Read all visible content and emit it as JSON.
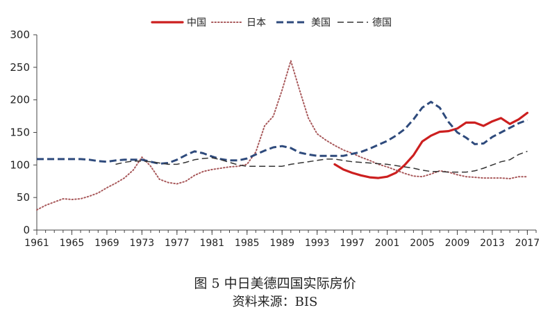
{
  "caption": {
    "title": "图 5 中日美德四国实际房价",
    "source": "资料来源：BIS"
  },
  "chart_data": {
    "type": "line",
    "xlim": [
      1961,
      2018
    ],
    "ylim": [
      0,
      300
    ],
    "y_ticks": [
      0,
      50,
      100,
      150,
      200,
      250,
      300
    ],
    "y_tick_labels": [
      "0",
      "50",
      "100",
      "150",
      "200",
      "250",
      "300"
    ],
    "x_ticks": [
      1961,
      1965,
      1969,
      1973,
      1977,
      1981,
      1985,
      1989,
      1993,
      1997,
      2001,
      2005,
      2009,
      2013,
      2017
    ],
    "x_tick_labels": [
      "1961",
      "1965",
      "1969",
      "1973",
      "1977",
      "1981",
      "1985",
      "1989",
      "1993",
      "1997",
      "2001",
      "2005",
      "2009",
      "2013",
      "2017"
    ],
    "grid": false,
    "legend_position": "top-center",
    "series": [
      {
        "name": "中国",
        "color": "#cc1f1f",
        "style": "solid",
        "x": [
          1995,
          1996,
          1997,
          1998,
          1999,
          2000,
          2001,
          2002,
          2003,
          2004,
          2005,
          2006,
          2007,
          2008,
          2009,
          2010,
          2011,
          2012,
          2013,
          2014,
          2015,
          2016,
          2017
        ],
        "y": [
          101,
          93,
          88,
          84,
          81,
          80,
          82,
          88,
          100,
          115,
          136,
          145,
          151,
          152,
          156,
          165,
          165,
          160,
          167,
          172,
          163,
          170,
          180
        ]
      },
      {
        "name": "日本",
        "color": "#a8585a",
        "style": "dotted",
        "x": [
          1961,
          1962,
          1963,
          1964,
          1965,
          1966,
          1967,
          1968,
          1969,
          1970,
          1971,
          1972,
          1973,
          1974,
          1975,
          1976,
          1977,
          1978,
          1979,
          1980,
          1981,
          1982,
          1983,
          1984,
          1985,
          1986,
          1987,
          1988,
          1989,
          1990,
          1991,
          1992,
          1993,
          1994,
          1995,
          1996,
          1997,
          1998,
          1999,
          2000,
          2001,
          2002,
          2003,
          2004,
          2005,
          2006,
          2007,
          2008,
          2009,
          2010,
          2011,
          2012,
          2013,
          2014,
          2015,
          2016,
          2017
        ],
        "y": [
          31,
          38,
          43,
          48,
          47,
          48,
          52,
          57,
          65,
          72,
          80,
          92,
          112,
          98,
          78,
          73,
          71,
          75,
          84,
          90,
          93,
          95,
          97,
          98,
          101,
          120,
          160,
          175,
          215,
          260,
          215,
          172,
          148,
          138,
          130,
          123,
          118,
          112,
          107,
          101,
          97,
          92,
          87,
          83,
          82,
          86,
          91,
          89,
          85,
          82,
          81,
          80,
          80,
          80,
          79,
          82,
          82
        ]
      },
      {
        "name": "美国",
        "color": "#2e4a7c",
        "style": "dashed",
        "x": [
          1961,
          1962,
          1963,
          1964,
          1965,
          1966,
          1967,
          1968,
          1969,
          1970,
          1971,
          1972,
          1973,
          1974,
          1975,
          1976,
          1977,
          1978,
          1979,
          1980,
          1981,
          1982,
          1983,
          1984,
          1985,
          1986,
          1987,
          1988,
          1989,
          1990,
          1991,
          1992,
          1993,
          1994,
          1995,
          1996,
          1997,
          1998,
          1999,
          2000,
          2001,
          2002,
          2003,
          2004,
          2005,
          2006,
          2007,
          2008,
          2009,
          2010,
          2011,
          2012,
          2013,
          2014,
          2015,
          2016,
          2017
        ],
        "y": [
          109,
          109,
          109,
          109,
          109,
          109,
          108,
          106,
          105,
          107,
          108,
          108,
          108,
          105,
          102,
          103,
          108,
          115,
          121,
          118,
          113,
          109,
          107,
          107,
          110,
          116,
          122,
          127,
          129,
          126,
          119,
          116,
          114,
          114,
          114,
          114,
          117,
          120,
          125,
          131,
          137,
          145,
          155,
          170,
          188,
          197,
          188,
          166,
          150,
          142,
          132,
          133,
          143,
          150,
          157,
          164,
          169
        ]
      },
      {
        "name": "德国",
        "color": "#333333",
        "style": "longdash",
        "x": [
          1970,
          1971,
          1972,
          1973,
          1974,
          1975,
          1976,
          1977,
          1978,
          1979,
          1980,
          1981,
          1982,
          1983,
          1984,
          1985,
          1986,
          1987,
          1988,
          1989,
          1990,
          1991,
          1992,
          1993,
          1994,
          1995,
          1996,
          1997,
          1998,
          1999,
          2000,
          2001,
          2002,
          2003,
          2004,
          2005,
          2006,
          2007,
          2008,
          2009,
          2010,
          2011,
          2012,
          2013,
          2014,
          2015,
          2016,
          2017
        ],
        "y": [
          101,
          104,
          106,
          106,
          105,
          103,
          101,
          101,
          104,
          108,
          110,
          111,
          108,
          104,
          100,
          98,
          98,
          98,
          98,
          98,
          101,
          103,
          105,
          107,
          109,
          109,
          107,
          105,
          104,
          103,
          102,
          101,
          99,
          97,
          95,
          92,
          90,
          90,
          89,
          89,
          89,
          91,
          95,
          100,
          105,
          108,
          116,
          121
        ]
      }
    ]
  }
}
